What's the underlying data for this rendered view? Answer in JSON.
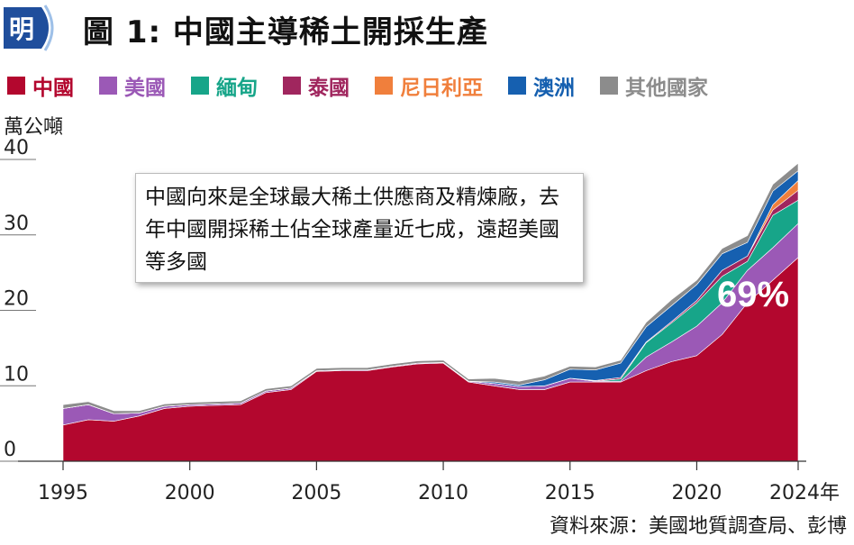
{
  "header": {
    "logo_char": "明",
    "title": "圖 1: 中國主導稀土開採生產"
  },
  "legend": [
    {
      "label": "中國",
      "color": "#b3072e"
    },
    {
      "label": "美國",
      "color": "#9b59b6"
    },
    {
      "label": "緬甸",
      "color": "#17a589"
    },
    {
      "label": "泰國",
      "color": "#a0265e"
    },
    {
      "label": "尼日利亞",
      "color": "#f07f3c"
    },
    {
      "label": "澳洲",
      "color": "#1660b0"
    },
    {
      "label": "其他國家",
      "color": "#8c8c8c"
    }
  ],
  "unit_label": "萬公噸",
  "annotation": "中國向來是全球最大稀土供應商及精煉廠，去年中國開採稀土佔全球產量近七成，遠超美國等多國",
  "china_share_label": "69%",
  "source": "資料來源：美國地質調查局、彭博",
  "chart_data": {
    "type": "area",
    "xlabel": "",
    "ylabel": "萬公噸",
    "xlim": [
      1995,
      2024
    ],
    "ylim": [
      0,
      40
    ],
    "x_ticks": [
      "1995",
      "2000",
      "2005",
      "2010",
      "2015",
      "2020",
      "2024年"
    ],
    "y_ticks": [
      "0",
      "10",
      "20",
      "30",
      "40"
    ],
    "years": [
      1995,
      1996,
      1997,
      1998,
      1999,
      2000,
      2001,
      2002,
      2003,
      2004,
      2005,
      2006,
      2007,
      2008,
      2009,
      2010,
      2011,
      2012,
      2013,
      2014,
      2015,
      2016,
      2017,
      2018,
      2019,
      2020,
      2021,
      2022,
      2023,
      2024
    ],
    "series": [
      {
        "name": "中國",
        "color": "#b3072e",
        "values": [
          4.8,
          5.5,
          5.3,
          6.0,
          7.0,
          7.3,
          7.4,
          7.5,
          9.1,
          9.5,
          11.9,
          12.0,
          12.0,
          12.5,
          12.9,
          13.0,
          10.5,
          10.0,
          9.5,
          9.5,
          10.5,
          10.5,
          10.5,
          12.0,
          13.2,
          14.0,
          16.8,
          21.0,
          24.0,
          27.0
        ]
      },
      {
        "name": "美國",
        "color": "#9b59b6",
        "values": [
          2.2,
          2.0,
          1.0,
          0.4,
          0.3,
          0.2,
          0.2,
          0.2,
          0.2,
          0.2,
          0.1,
          0.1,
          0.1,
          0.1,
          0.1,
          0.1,
          0.1,
          0.3,
          0.4,
          0.5,
          0.5,
          0.1,
          0.1,
          1.8,
          2.6,
          3.9,
          4.2,
          4.3,
          4.3,
          4.5
        ]
      },
      {
        "name": "緬甸",
        "color": "#17a589",
        "values": [
          0,
          0,
          0,
          0,
          0,
          0,
          0,
          0,
          0,
          0,
          0,
          0,
          0,
          0,
          0,
          0,
          0,
          0,
          0,
          0,
          0,
          0,
          0.3,
          1.9,
          2.5,
          3.1,
          3.5,
          1.2,
          4.3,
          3.1
        ]
      },
      {
        "name": "泰國",
        "color": "#a0265e",
        "values": [
          0,
          0,
          0,
          0,
          0,
          0,
          0,
          0,
          0,
          0,
          0,
          0,
          0,
          0,
          0,
          0,
          0,
          0,
          0,
          0,
          0,
          0.1,
          0.2,
          0.1,
          0.2,
          0.3,
          0.8,
          0.7,
          0.7,
          1.3
        ]
      },
      {
        "name": "尼日利亞",
        "color": "#f07f3c",
        "values": [
          0,
          0,
          0,
          0,
          0,
          0,
          0,
          0,
          0,
          0,
          0,
          0,
          0,
          0,
          0,
          0,
          0,
          0,
          0,
          0,
          0,
          0,
          0,
          0,
          0,
          0,
          0,
          0,
          0.7,
          1.3
        ]
      },
      {
        "name": "澳洲",
        "color": "#1660b0",
        "values": [
          0,
          0,
          0,
          0,
          0,
          0,
          0,
          0,
          0,
          0,
          0,
          0,
          0,
          0,
          0,
          0,
          0,
          0.2,
          0.2,
          0.8,
          1.2,
          1.4,
          1.9,
          2.0,
          2.1,
          2.1,
          2.2,
          1.8,
          1.8,
          1.3
        ]
      },
      {
        "name": "其他國家",
        "color": "#8c8c8c",
        "values": [
          0.5,
          0.4,
          0.4,
          0.3,
          0.3,
          0.3,
          0.3,
          0.3,
          0.3,
          0.3,
          0.3,
          0.3,
          0.3,
          0.3,
          0.3,
          0.3,
          0.3,
          0.5,
          0.5,
          0.5,
          0.4,
          0.4,
          0.4,
          0.6,
          0.8,
          0.6,
          0.7,
          0.9,
          0.9,
          1.0
        ]
      }
    ]
  }
}
